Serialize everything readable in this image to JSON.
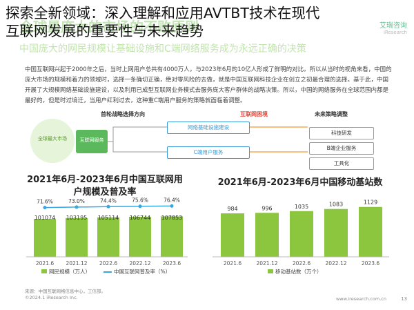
{
  "overlay": {
    "title_line1": "探索全新领域：深入理解和应用AVTBT技术在现代",
    "title_line2": "互联网发展的重要性与未来趋势"
  },
  "report": {
    "bg_title": "全球最庞大的市场的不败原则",
    "bg_subtitle": "中国庞大的网民规模让基础设施和C端网络服务成为永远正确的决策",
    "logo": "艾瑞咨询",
    "logo_sub": "iResearch",
    "paragraph": "中国互联网兴起于2000年之后，当时上网用户总共有4000万人，与2023年6月的10亿人形成了鲜明的对比。所以从当时的视角来看，中国的庞大市场的规模和着力的领域时，选择一条确切正确，绝对零风险的去做，就是中国互联网科技企业在创立之初最合理的选择。基于此，中国开展了大规模网络基础设施建设，以及利用已成型互联网业务模式去服务庞大客户群体的战略决策。所以，中国的网络服务在全球范围内都是最好的，但是时过境迁，当用户红利过去，这种重C端用户服务的策略就面临着调整。",
    "footer_source": "来源：中国互联网络信息中心，工信部。",
    "footer_copy": "©2024.1 iResearch Inc.",
    "footer_site": "www.iresearch.com.cn",
    "page": "13"
  },
  "diagram": {
    "left_header": "首轮战略选择方向",
    "middle_header": "互联网困境",
    "right_header": "未来策略调整",
    "circle_label": "全球最大市场",
    "hub_label": "互联网服务",
    "branches": [
      "网络基础设施建设",
      "C端用户服务"
    ],
    "right_items": [
      "科技研发",
      "B端企业服务",
      "工具化"
    ]
  },
  "chart_users": {
    "title": "2021年6月-2023年6月中国互联网用户规模及普及率",
    "legend_bar": "网民规模（万人）",
    "legend_line": "中国互联网普及率（%）"
  },
  "chart_stations": {
    "title": "2021年6月-2023年6月中国移动基站数",
    "legend_bar": "移动基站数（万个）"
  },
  "chart_data": [
    {
      "type": "bar",
      "title": "2021年6月-2023年6月中国互联网用户规模及普及率",
      "categories": [
        "2021.6",
        "2021.12",
        "2022.6",
        "2022.12",
        "2023.6"
      ],
      "series": [
        {
          "name": "网民规模（万人）",
          "values": [
            101074,
            103195,
            105114,
            106744,
            107853
          ]
        },
        {
          "name": "中国互联网普及率（%）",
          "type": "line",
          "values": [
            71.6,
            73.0,
            74.4,
            75.6,
            76.4
          ]
        }
      ],
      "value_labels": [
        "101074",
        "103195",
        "105114",
        "106744",
        "107853"
      ],
      "rate_labels": [
        "71.6%",
        "73.0%",
        "74.4%",
        "75.6%",
        "76.4%"
      ],
      "grid": false
    },
    {
      "type": "bar",
      "title": "2021年6月-2023年6月中国移动基站数",
      "categories": [
        "2021.6",
        "2021.12",
        "2022.6",
        "2022.12",
        "2023.6"
      ],
      "series": [
        {
          "name": "移动基站数（万个）",
          "values": [
            984,
            996,
            1035,
            1083,
            1129
          ]
        }
      ],
      "grid": false
    }
  ],
  "colors": {
    "bar_green": "#8cc63f",
    "line_blue": "#36a7e0",
    "accent_orange": "#f29a2e",
    "pill_blue": "#3a9bd8",
    "hub_green": "#5cb85c"
  }
}
